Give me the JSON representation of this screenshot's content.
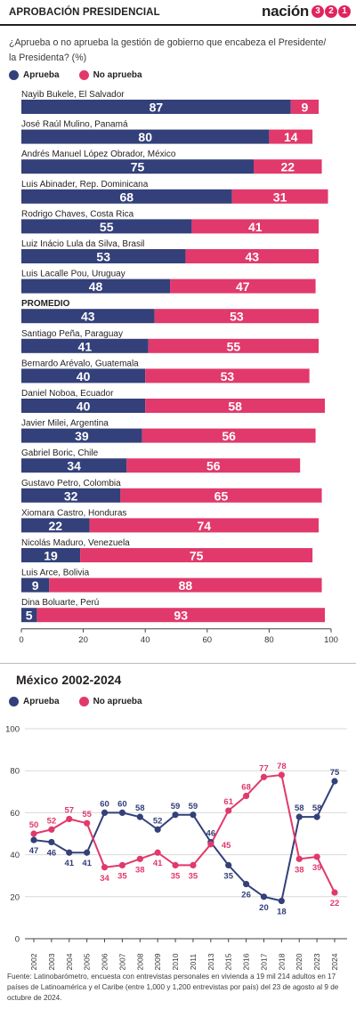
{
  "header": {
    "title": "APROBACIÓN PRESIDENCIAL",
    "brand": "nación",
    "brand_digits": [
      "3",
      "2",
      "1"
    ]
  },
  "question": "¿Aprueba o no aprueba la gestión de gobierno que encabeza el Presidente/ la Presidenta? (%)",
  "legend": {
    "approve": "Aprueba",
    "disapprove": "No aprueba"
  },
  "colors": {
    "approve": "#33407a",
    "disapprove": "#e1396b",
    "grid": "#d9d9d9"
  },
  "section2_title": "México 2002-2024",
  "source": "Fuente: Latinobarómetro, encuesta con entrevistas personales en vivienda a 19 mil 214 adultos en 17 países de Latinoamérica y el Caribe (entre 1,000 y 1,200 entrevistas por país) del 23 de agosto al 9 de octubre de 2024.",
  "chart_data": [
    {
      "type": "bar",
      "stacked": true,
      "orientation": "horizontal",
      "title": "",
      "categories": [
        "Nayib Bukele, El Salvador",
        "José Raúl Mulino, Panamá",
        "Andrés Manuel López Obrador, México",
        "Luis Abinader, Rep. Dominicana",
        "Rodrigo Chaves,  Costa Rica",
        "Luiz Inácio Lula da Silva, Brasil",
        "Luis Lacalle Pou, Uruguay",
        "PROMEDIO",
        "Santiago Peña, Paraguay",
        "Bernardo Arévalo, Guatemala",
        "Daniel Noboa, Ecuador",
        "Javier Milei, Argentina",
        "Gabriel Boric, Chile",
        "Gustavo Petro, Colombia",
        "Xiomara Castro, Honduras",
        "Nicolás Maduro, Venezuela",
        "Luis Arce, Bolivia",
        "Dina Boluarte, Perú"
      ],
      "series": [
        {
          "name": "Aprueba",
          "values": [
            87,
            80,
            75,
            68,
            55,
            53,
            48,
            43,
            41,
            40,
            40,
            39,
            34,
            32,
            22,
            19,
            9,
            5
          ]
        },
        {
          "name": "No aprueba",
          "values": [
            9,
            14,
            22,
            31,
            41,
            43,
            47,
            53,
            55,
            53,
            58,
            56,
            56,
            65,
            74,
            75,
            88,
            93
          ]
        }
      ],
      "xlim": [
        0,
        100
      ],
      "xticks": [
        0,
        20,
        40,
        60,
        80,
        100
      ],
      "grid": false,
      "legend_position": "top-left"
    },
    {
      "type": "line",
      "title": "México 2002-2024",
      "x": [
        "2002",
        "2003",
        "2004",
        "2005",
        "2006",
        "2007",
        "2008",
        "2009",
        "2010",
        "2011",
        "2013",
        "2015",
        "2016",
        "2017",
        "2018",
        "2020",
        "2023",
        "2024"
      ],
      "series": [
        {
          "name": "Aprueba",
          "values": [
            47,
            46,
            41,
            41,
            60,
            60,
            58,
            52,
            59,
            59,
            46,
            35,
            26,
            20,
            18,
            58,
            58,
            75
          ],
          "labels": [
            47,
            46,
            41,
            41,
            60,
            60,
            58,
            52,
            59,
            59,
            46,
            35,
            26,
            20,
            18,
            58,
            58,
            75
          ]
        },
        {
          "name": "No aprueba",
          "values": [
            50,
            52,
            57,
            55,
            34,
            35,
            38,
            41,
            35,
            35,
            45,
            61,
            68,
            77,
            78,
            38,
            39,
            22
          ],
          "labels": [
            50,
            52,
            57,
            55,
            34,
            35,
            38,
            41,
            35,
            35,
            null,
            61,
            68,
            77,
            78,
            38,
            39,
            22
          ]
        }
      ],
      "label_45_shown": "45",
      "ylim": [
        0,
        100
      ],
      "yticks": [
        0,
        20,
        40,
        60,
        80,
        100
      ],
      "grid": true,
      "legend_position": "top-left"
    }
  ]
}
